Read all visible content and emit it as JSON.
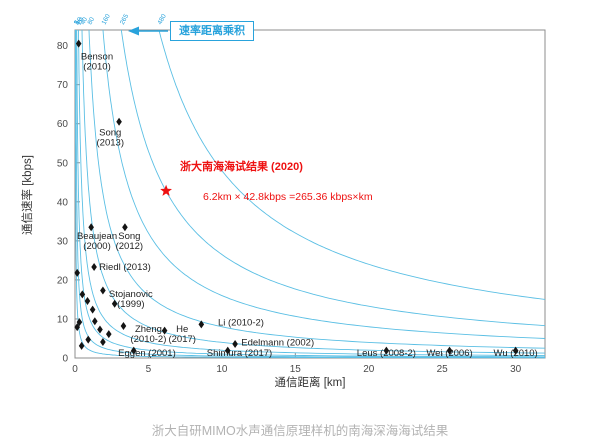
{
  "caption": "浙大自研MIMO水声通信原理样机的南海深海海试结果",
  "chart_data": {
    "type": "scatter",
    "title": "",
    "xlabel": "通信距离 [km]",
    "ylabel": "通信速率 [kbps]",
    "xlim": [
      0,
      32
    ],
    "ylim": [
      0,
      84
    ],
    "xticks": [
      0,
      5,
      10,
      15,
      20,
      25,
      30
    ],
    "yticks": [
      0,
      10,
      20,
      30,
      40,
      50,
      60,
      70,
      80
    ],
    "grid": false,
    "product_label": "速率距离乘积",
    "curves": [
      2,
      5,
      10,
      20,
      40,
      80,
      160,
      265,
      480
    ],
    "colors": {
      "curve": "#5bbfe4",
      "point": "#141414",
      "highlight": "#ee1111",
      "annotation": "#29a3dc",
      "axis": "#8c8c8c"
    },
    "highlight": {
      "label": "浙大南海海试结果 (2020)",
      "detail": "6.2km × 42.8kbps =265.36 kbps×km",
      "x": 6.2,
      "y": 42.8,
      "product_kbps_km": 265.36
    },
    "points": [
      {
        "x": 0.25,
        "y": 80.5,
        "lines": [
          "Benson",
          "(2010)"
        ],
        "lx": 1.5,
        "ly": 76.5,
        "anchor": "middle"
      },
      {
        "x": 3.0,
        "y": 60.5,
        "lines": [
          "Song",
          "(2013)"
        ],
        "lx": 2.4,
        "ly": 57.0,
        "anchor": "middle"
      },
      {
        "x": 1.1,
        "y": 33.5,
        "lines": [
          "Beaujean",
          "(2000)"
        ],
        "lx": 1.5,
        "ly": 30.5,
        "anchor": "middle"
      },
      {
        "x": 3.4,
        "y": 33.5,
        "lines": [
          "Song",
          "(2012)"
        ],
        "lx": 3.7,
        "ly": 30.5,
        "anchor": "middle"
      },
      {
        "x": 1.3,
        "y": 23.3,
        "lines": [
          "Riedl (2013)"
        ],
        "lx": 3.4,
        "ly": 22.6,
        "anchor": "middle"
      },
      {
        "x": 1.9,
        "y": 17.3,
        "lines": [
          "Stojanovic",
          "(1999)"
        ],
        "lx": 3.8,
        "ly": 15.6,
        "anchor": "middle"
      },
      {
        "x": 3.3,
        "y": 8.2,
        "lines": [
          "Zheng",
          "(2010-2)"
        ],
        "lx": 5.0,
        "ly": 6.6,
        "anchor": "middle"
      },
      {
        "x": 6.1,
        "y": 7.0,
        "lines": [
          "He",
          "(2017)"
        ],
        "lx": 7.3,
        "ly": 6.6,
        "anchor": "middle"
      },
      {
        "x": 8.6,
        "y": 8.6,
        "lines": [
          "Li (2010-2)"
        ],
        "lx": 11.3,
        "ly": 8.3,
        "anchor": "middle"
      },
      {
        "x": 10.9,
        "y": 3.6,
        "lines": [
          "Edelmann (2002)"
        ],
        "lx": 13.8,
        "ly": 3.2,
        "anchor": "middle"
      },
      {
        "x": 4.0,
        "y": 1.9,
        "lines": [
          "Eggen (2001)"
        ],
        "lx": 4.9,
        "ly": 0.5,
        "anchor": "middle"
      },
      {
        "x": 10.4,
        "y": 1.9,
        "lines": [
          "Shimura (2017)"
        ],
        "lx": 11.2,
        "ly": 0.5,
        "anchor": "middle"
      },
      {
        "x": 21.2,
        "y": 1.9,
        "lines": [
          "Leus (2008-2)"
        ],
        "lx": 21.2,
        "ly": 0.5,
        "anchor": "middle"
      },
      {
        "x": 25.5,
        "y": 1.9,
        "lines": [
          "Wei (2006)"
        ],
        "lx": 25.5,
        "ly": 0.5,
        "anchor": "middle"
      },
      {
        "x": 30.0,
        "y": 1.9,
        "lines": [
          "Wu (2010)"
        ],
        "lx": 30.0,
        "ly": 0.5,
        "anchor": "middle"
      }
    ],
    "unlabeled_points": [
      [
        0.15,
        21.8
      ],
      [
        0.5,
        16.3
      ],
      [
        0.85,
        14.6
      ],
      [
        1.2,
        12.4
      ],
      [
        0.3,
        9.2
      ],
      [
        1.35,
        9.4
      ],
      [
        0.15,
        7.9
      ],
      [
        1.7,
        7.3
      ],
      [
        2.3,
        6.1
      ],
      [
        0.9,
        4.7
      ],
      [
        1.9,
        4.1
      ],
      [
        0.45,
        3.1
      ],
      [
        2.7,
        13.9
      ]
    ]
  }
}
